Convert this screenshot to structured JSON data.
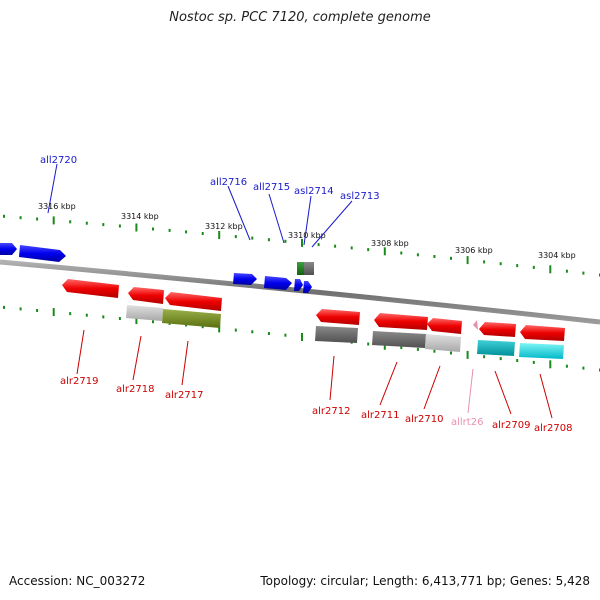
{
  "title": "Nostoc sp. PCC 7120, complete genome",
  "footer": {
    "accession": "Accession: NC_003272",
    "summary": "Topology: circular; Length: 6,413,771 bp; Genes: 5,428"
  },
  "colors": {
    "forward_label": "#1a1acc",
    "reverse_label": "#cc0000",
    "rna_label": "#e890b0",
    "backbone": "#888888",
    "tick": "#1a8a1a"
  },
  "scale": {
    "ticks": [
      {
        "label": "3316 kbp"
      },
      {
        "label": "3314 kbp"
      },
      {
        "label": "3312 kbp"
      },
      {
        "label": "3310 kbp"
      },
      {
        "label": "3308 kbp"
      },
      {
        "label": "3306 kbp"
      },
      {
        "label": "3304 kbp"
      }
    ]
  },
  "genes_top": [
    {
      "label": "all2720",
      "color": "#1a1acc"
    },
    {
      "label": "all2716",
      "color": "#1a1acc"
    },
    {
      "label": "all2715",
      "color": "#1a1acc"
    },
    {
      "label": "asl2714",
      "color": "#1a1acc"
    },
    {
      "label": "asl2713",
      "color": "#1a1acc"
    }
  ],
  "genes_bottom": [
    {
      "label": "alr2719",
      "color": "#cc0000"
    },
    {
      "label": "alr2718",
      "color": "#cc0000"
    },
    {
      "label": "alr2717",
      "color": "#cc0000"
    },
    {
      "label": "alr2712",
      "color": "#cc0000"
    },
    {
      "label": "alr2711",
      "color": "#cc0000"
    },
    {
      "label": "alr2710",
      "color": "#cc0000"
    },
    {
      "label": "allrt26",
      "color": "#e890b0"
    },
    {
      "label": "alr2709",
      "color": "#cc0000"
    },
    {
      "label": "alr2708",
      "color": "#cc0000"
    }
  ]
}
